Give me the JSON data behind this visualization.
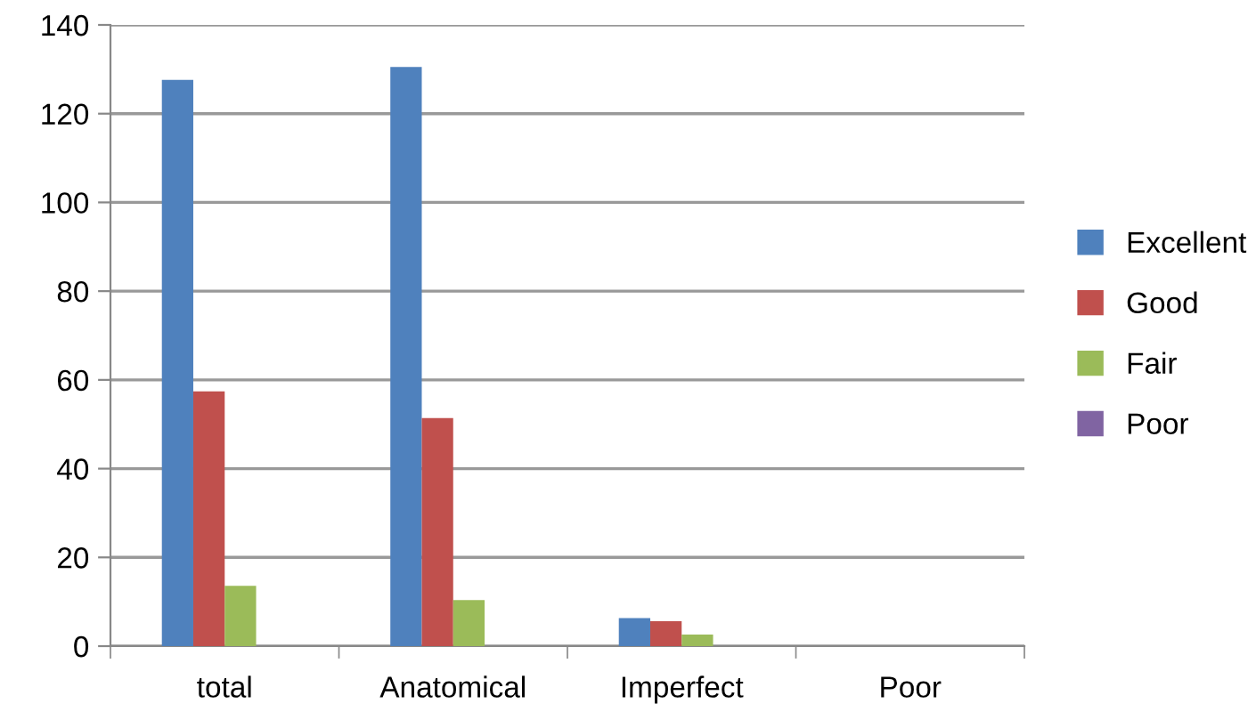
{
  "chart_data": {
    "type": "bar",
    "categories": [
      "total",
      "Anatomical",
      "Imperfect",
      "Poor"
    ],
    "series": [
      {
        "name": "Excellent",
        "color": "#4f81bd",
        "values": [
          127.6,
          130.5,
          6.3,
          0
        ]
      },
      {
        "name": "Good",
        "color": "#c0504d",
        "values": [
          57.4,
          51.4,
          5.6,
          0
        ]
      },
      {
        "name": "Fair",
        "color": "#9bbb59",
        "values": [
          13.6,
          10.4,
          2.6,
          0
        ]
      },
      {
        "name": "Poor",
        "color": "#8064a2",
        "values": [
          0,
          0,
          0,
          0
        ]
      }
    ],
    "ylim": [
      0,
      140
    ],
    "yticks": [
      0,
      20,
      40,
      60,
      80,
      100,
      120,
      140
    ],
    "grid": "y",
    "legend": "right"
  }
}
